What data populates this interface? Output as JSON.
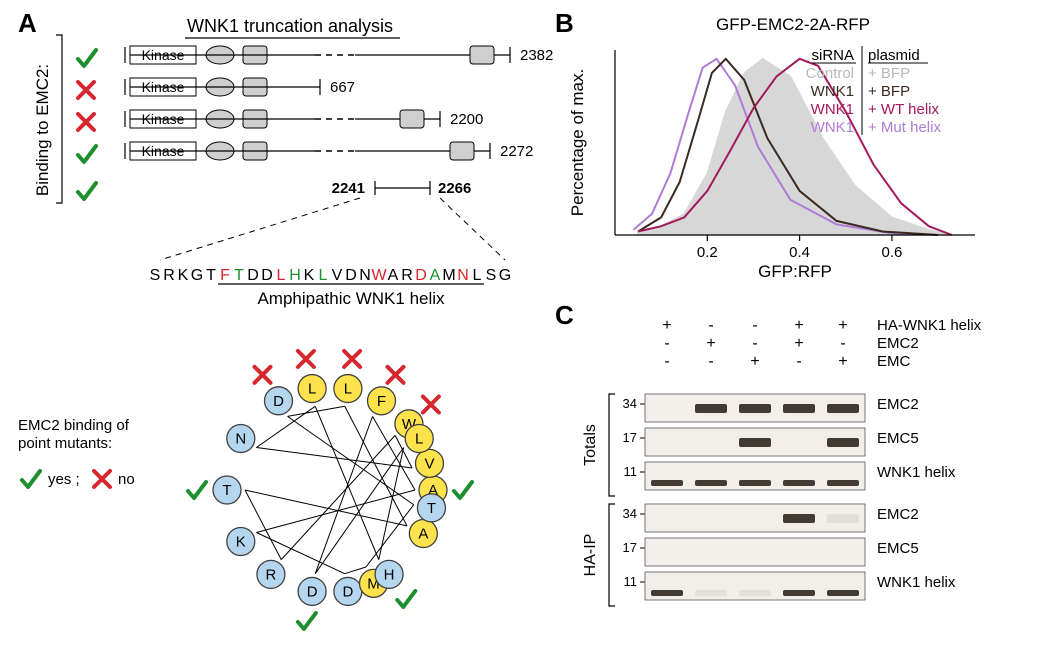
{
  "panels": {
    "A": "A",
    "B": "B",
    "C": "C"
  },
  "A": {
    "title": "WNK1 truncation analysis",
    "bindingLabel": "Binding to EMC2:",
    "legendTitle": "EMC2 binding of\npoint mutants:",
    "legendYes": "yes",
    "legendNo": "no",
    "constructs": [
      {
        "bind": true,
        "end": "2382",
        "len": 380
      },
      {
        "bind": false,
        "end": "667",
        "len": 190
      },
      {
        "bind": false,
        "end": "2200",
        "len": 310
      },
      {
        "bind": true,
        "end": "2272",
        "len": 360
      }
    ],
    "fragment": {
      "bind": true,
      "start": "2241",
      "end": "2266"
    },
    "seq": "SRKGTFTDDLHKLVDNWARDAMNLSG",
    "seqUnderlineStart": 5,
    "seqUnderlineEnd": 23,
    "seqHighlights": {
      "red": [
        5,
        9,
        16,
        19,
        22
      ],
      "green": [
        6,
        10,
        12,
        20
      ]
    },
    "helixLabel": "Amphipathic WNK1 helix",
    "wheel": {
      "hydrophobic": "#ffe34d",
      "hydrophilic": "#b5d6ef",
      "border": "#404040",
      "residues": [
        {
          "aa": "T",
          "angle": 270,
          "type": "blue",
          "mut": "yes"
        },
        {
          "aa": "K",
          "angle": 240,
          "type": "blue"
        },
        {
          "aa": "N",
          "angle": 300,
          "type": "blue"
        },
        {
          "aa": "D",
          "angle": 330,
          "type": "blue",
          "mut": "no"
        },
        {
          "aa": "D",
          "angle": 190,
          "type": "blue",
          "mut": "yes"
        },
        {
          "aa": "R",
          "angle": 215,
          "type": "blue"
        },
        {
          "aa": "D",
          "angle": 170,
          "type": "blue"
        },
        {
          "aa": "L",
          "angle": 350,
          "type": "yellow",
          "mut": "no"
        },
        {
          "aa": "L",
          "angle": 10,
          "type": "yellow",
          "mut": "no"
        },
        {
          "aa": "F",
          "angle": 30,
          "type": "yellow",
          "mut": "no"
        },
        {
          "aa": "W",
          "angle": 50,
          "type": "yellow",
          "mut": "no"
        },
        {
          "aa": "M",
          "angle": 155,
          "type": "yellow"
        },
        {
          "aa": "H",
          "angle": 145,
          "type": "blue",
          "mut": "yes"
        },
        {
          "aa": "A",
          "angle": 115,
          "type": "yellow"
        },
        {
          "aa": "A",
          "angle": 90,
          "type": "yellow",
          "mut": "yes"
        },
        {
          "aa": "V",
          "angle": 75,
          "type": "yellow"
        },
        {
          "aa": "T",
          "angle": 100,
          "type": "blue"
        },
        {
          "aa": "L",
          "angle": 60,
          "type": "yellow"
        }
      ],
      "backboneColor": "#000",
      "radius": 85,
      "nodeR": 14
    }
  },
  "B": {
    "title": "GFP-EMC2-2A-RFP",
    "yLabel": "Percentage of max.",
    "xLabel": "GFP:RFP",
    "legendHeaders": {
      "left": "siRNA",
      "right": "plasmid"
    },
    "legend": [
      {
        "si": "Control",
        "pl": "BFP",
        "color": "#b8b8b8",
        "fill": true
      },
      {
        "si": "WNK1",
        "pl": "BFP",
        "color": "#3a2a1f",
        "fill": false
      },
      {
        "si": "WNK1",
        "pl": "WT helix",
        "color": "#a3195b",
        "fill": false
      },
      {
        "si": "WNK1",
        "pl": "Mut helix",
        "color": "#b07bd6",
        "fill": false
      }
    ],
    "xTicks": [
      "0.2",
      "0.4",
      "0.6"
    ],
    "curves": {
      "grayFill": [
        [
          0.05,
          2
        ],
        [
          0.1,
          5
        ],
        [
          0.15,
          12
        ],
        [
          0.2,
          35
        ],
        [
          0.24,
          70
        ],
        [
          0.28,
          92
        ],
        [
          0.32,
          100
        ],
        [
          0.38,
          90
        ],
        [
          0.45,
          55
        ],
        [
          0.52,
          28
        ],
        [
          0.6,
          10
        ],
        [
          0.68,
          3
        ],
        [
          0.73,
          0
        ]
      ],
      "darkBrown": [
        [
          0.05,
          2
        ],
        [
          0.1,
          10
        ],
        [
          0.14,
          30
        ],
        [
          0.18,
          65
        ],
        [
          0.21,
          92
        ],
        [
          0.24,
          100
        ],
        [
          0.28,
          88
        ],
        [
          0.33,
          55
        ],
        [
          0.4,
          25
        ],
        [
          0.48,
          8
        ],
        [
          0.58,
          2
        ],
        [
          0.7,
          0
        ]
      ],
      "magenta": [
        [
          0.05,
          2
        ],
        [
          0.1,
          5
        ],
        [
          0.15,
          10
        ],
        [
          0.2,
          25
        ],
        [
          0.25,
          48
        ],
        [
          0.3,
          72
        ],
        [
          0.35,
          90
        ],
        [
          0.4,
          100
        ],
        [
          0.44,
          96
        ],
        [
          0.5,
          70
        ],
        [
          0.56,
          40
        ],
        [
          0.62,
          18
        ],
        [
          0.68,
          5
        ],
        [
          0.73,
          0
        ]
      ],
      "lilac": [
        [
          0.04,
          3
        ],
        [
          0.08,
          12
        ],
        [
          0.12,
          35
        ],
        [
          0.16,
          70
        ],
        [
          0.19,
          95
        ],
        [
          0.22,
          100
        ],
        [
          0.26,
          85
        ],
        [
          0.31,
          50
        ],
        [
          0.38,
          20
        ],
        [
          0.48,
          6
        ],
        [
          0.6,
          1
        ],
        [
          0.7,
          0
        ]
      ]
    },
    "xRange": [
      0.0,
      0.78
    ],
    "yRange": [
      0,
      105
    ],
    "colors": {
      "gray": "#b8b8b8",
      "darkBrown": "#3a2a1f",
      "magenta": "#a3195b",
      "lilac": "#b07bd6"
    }
  },
  "C": {
    "conditionLabels": [
      "HA-WNK1 helix",
      "EMC2",
      "EMC"
    ],
    "conditions": [
      [
        "+",
        "-",
        "-",
        "+",
        "+"
      ],
      [
        "-",
        "+",
        "-",
        "+",
        "-"
      ],
      [
        "-",
        "-",
        "+",
        "-",
        "+"
      ]
    ],
    "groups": [
      {
        "name": "Totals",
        "rows": [
          "EMC2",
          "EMC5",
          "WNK1 helix"
        ],
        "markers": [
          "34",
          "17",
          "11"
        ],
        "bands": [
          {
            "row": 0,
            "lanes": [
              1,
              2,
              3,
              4
            ],
            "intensity": 1
          },
          {
            "row": 1,
            "lanes": [
              2,
              4
            ],
            "intensity": 1
          },
          {
            "row": 2,
            "lanes": [
              0,
              1,
              2,
              3,
              4
            ],
            "intensity": 0.9,
            "short": true
          }
        ]
      },
      {
        "name": "HA-IP",
        "rows": [
          "EMC2",
          "EMC5",
          "WNK1 helix"
        ],
        "markers": [
          "34",
          "17",
          "11"
        ],
        "bands": [
          {
            "row": 0,
            "lanes": [
              3
            ],
            "intensity": 1
          },
          {
            "row": 0,
            "lanes": [
              4
            ],
            "intensity": 0.15
          },
          {
            "row": 2,
            "lanes": [
              0,
              3,
              4
            ],
            "intensity": 0.9,
            "short": true
          },
          {
            "row": 2,
            "lanes": [
              1,
              2
            ],
            "intensity": 0.15,
            "short": true
          }
        ]
      }
    ],
    "laneCount": 5,
    "blotColors": {
      "bg": "#f2efeb",
      "band": "#423b33",
      "faint": "#b7afa2",
      "border": "#555"
    }
  }
}
